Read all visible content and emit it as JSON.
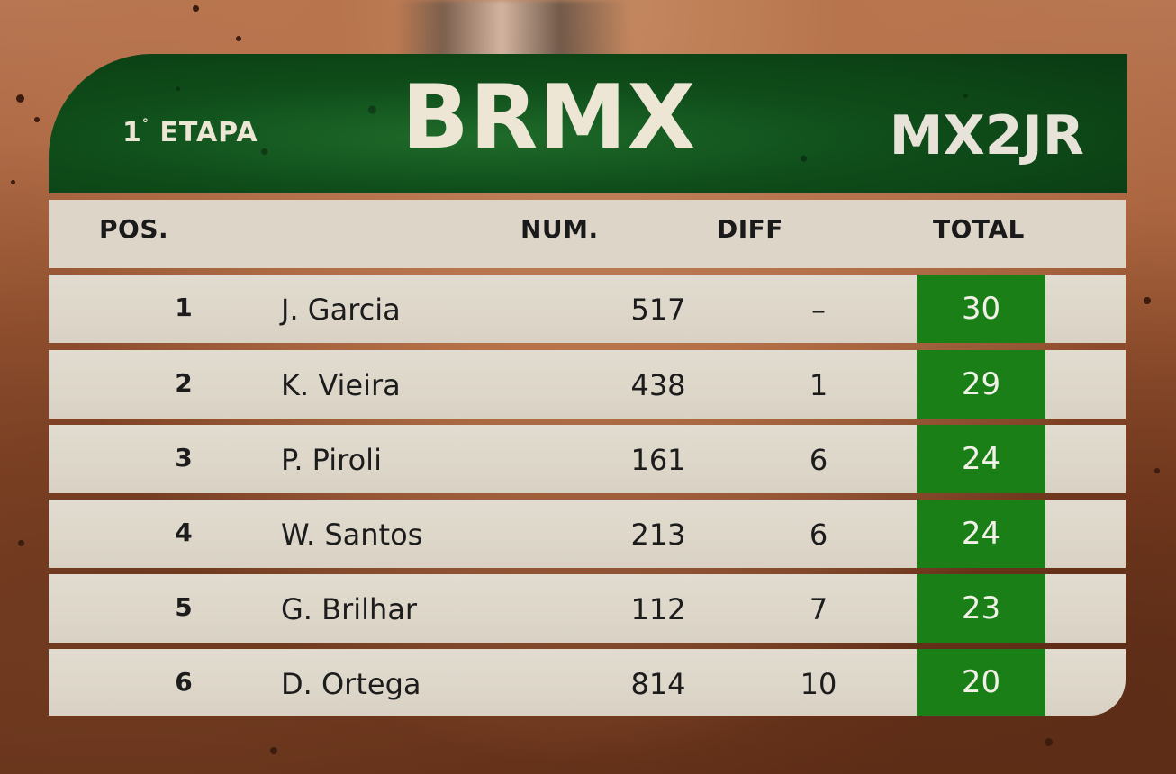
{
  "header": {
    "stage_number": "1",
    "stage_degree": "°",
    "stage_label": "ETAPA",
    "brand": "BRMX",
    "category": "MX2JR"
  },
  "columns": {
    "pos": "POS.",
    "num": "NUM.",
    "diff": "DIFF",
    "total": "TOTAL"
  },
  "rows": [
    {
      "pos": "1",
      "name": "J. Garcia",
      "num": "517",
      "diff": "–",
      "total": "30"
    },
    {
      "pos": "2",
      "name": "K. Vieira",
      "num": "438",
      "diff": "1",
      "total": "29"
    },
    {
      "pos": "3",
      "name": "P. Piroli",
      "num": "161",
      "diff": "6",
      "total": "24"
    },
    {
      "pos": "4",
      "name": "W. Santos",
      "num": "213",
      "diff": "6",
      "total": "24"
    },
    {
      "pos": "5",
      "name": "G. Brilhar",
      "num": "112",
      "diff": "7",
      "total": "23"
    },
    {
      "pos": "6",
      "name": "D. Ortega",
      "num": "814",
      "diff": "10",
      "total": "20"
    }
  ],
  "colors": {
    "header_green": "#0f4d1a",
    "total_green": "#1a7f16",
    "row_bg": "#ddd6c8",
    "dirt": "#a8623c"
  }
}
